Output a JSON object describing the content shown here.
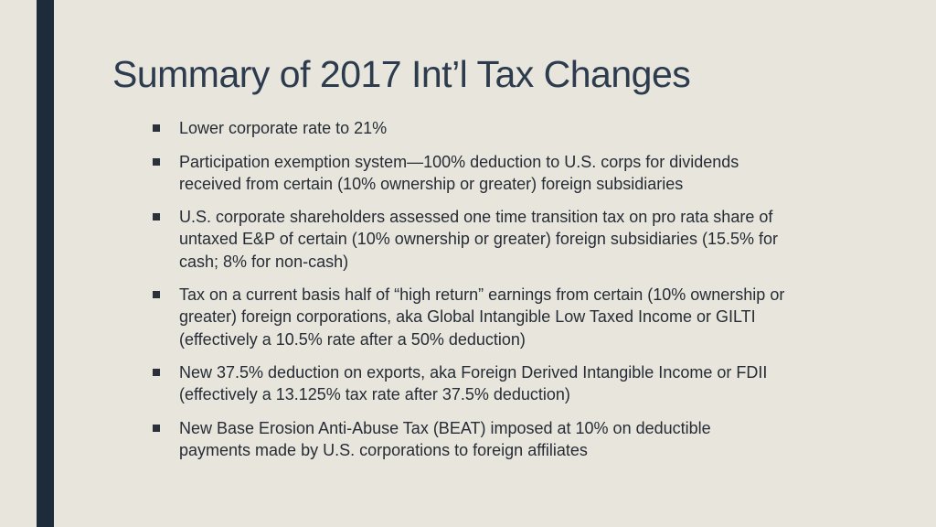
{
  "slide": {
    "title": "Summary of 2017 Int’l Tax Changes",
    "bullets": [
      "Lower corporate rate to 21%",
      "Participation exemption system—100% deduction to U.S. corps for dividends received from certain (10% ownership or greater) foreign subsidiaries",
      "U.S. corporate shareholders assessed one time transition tax on pro rata share of untaxed E&P of certain (10% ownership or greater) foreign subsidiaries (15.5% for cash; 8% for non-cash)",
      "Tax on a current basis half of “high return” earnings from certain (10% ownership or greater) foreign corporations, aka Global Intangible Low Taxed Income or GILTI (effectively a 10.5% rate after a 50% deduction)",
      "New 37.5% deduction on exports, aka Foreign Derived Intangible Income or FDII (effectively a 13.125% tax rate after 37.5% deduction)",
      "New Base Erosion Anti-Abuse Tax (BEAT) imposed at 10% on deductible payments made by U.S. corporations to foreign affiliates"
    ]
  },
  "colors": {
    "background": "#e8e6dc",
    "accent_bar": "#1e2b3a",
    "title": "#2d3b4e",
    "text": "#262c36"
  }
}
